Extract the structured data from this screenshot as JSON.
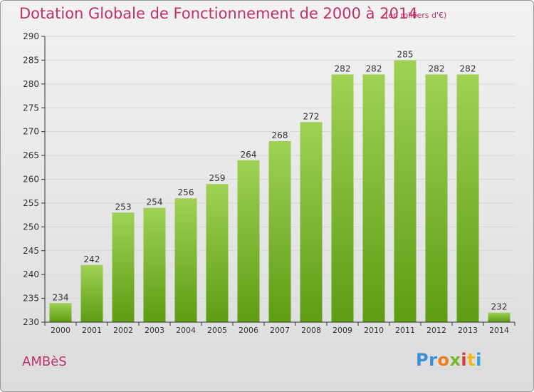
{
  "header": {
    "title": "Dotation Globale de Fonctionnement de 2000 à 2014",
    "unit_note": "(en milliers d'€)"
  },
  "footer": {
    "commune": "AMBèS",
    "logo": [
      "Pr",
      "o",
      "x",
      "i",
      "t",
      "i"
    ]
  },
  "colors": {
    "title": "#c0306a",
    "bar_top": "#9fd155",
    "bar_bottom": "#5c9d12",
    "grid": "#d8d8d8",
    "axis": "#333333"
  },
  "chart_data": {
    "type": "bar",
    "categories": [
      "2000",
      "2001",
      "2002",
      "2003",
      "2004",
      "2005",
      "2006",
      "2007",
      "2008",
      "2009",
      "2010",
      "2011",
      "2012",
      "2013",
      "2014"
    ],
    "values": [
      234,
      242,
      253,
      254,
      256,
      259,
      264,
      268,
      272,
      282,
      282,
      285,
      282,
      282,
      232
    ],
    "ylim": [
      230,
      290
    ],
    "yticks": [
      230,
      235,
      240,
      245,
      250,
      255,
      260,
      265,
      270,
      275,
      280,
      285,
      290
    ],
    "grid": true,
    "data_labels": true,
    "title": "Dotation Globale de Fonctionnement de 2000 à 2014",
    "xlabel": "",
    "ylabel": ""
  }
}
